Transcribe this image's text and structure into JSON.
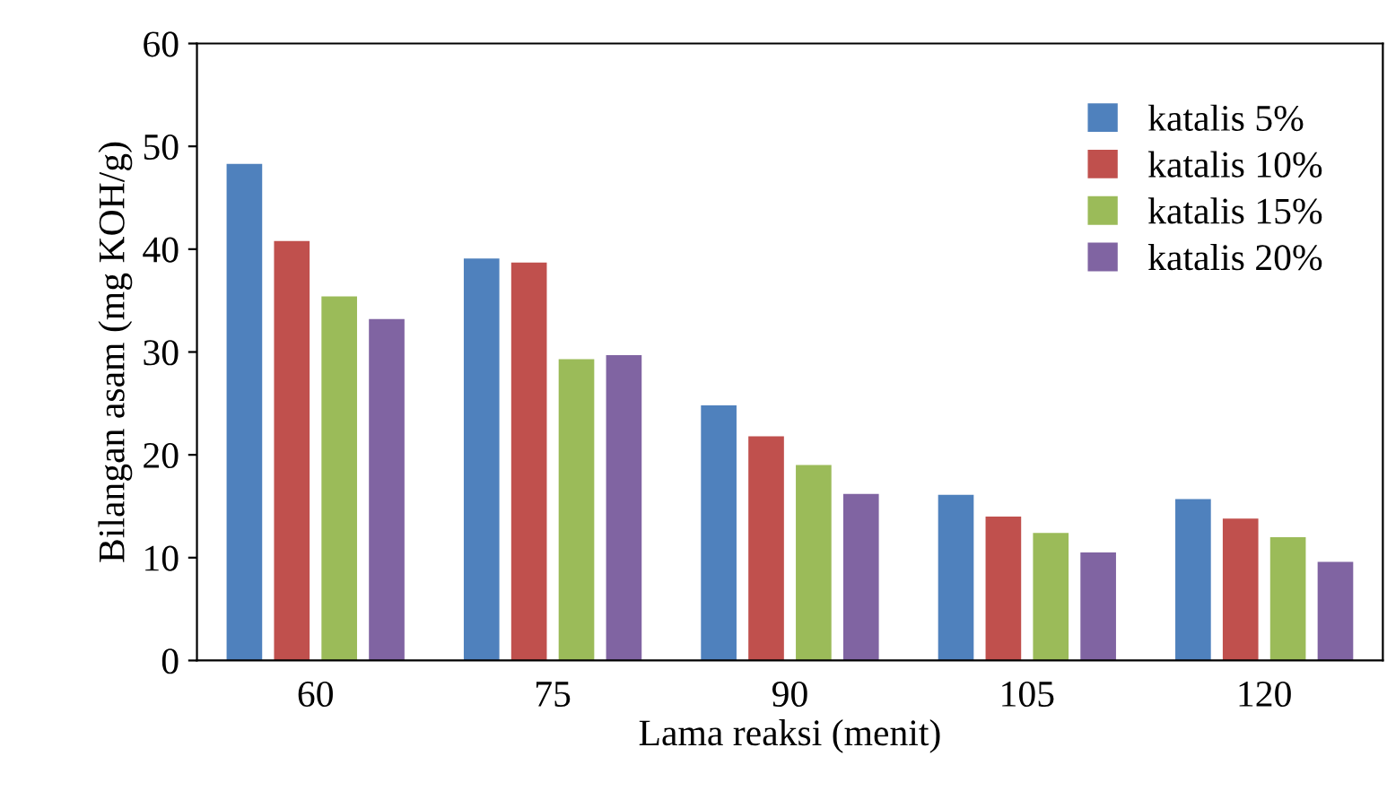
{
  "chart_data": {
    "type": "bar",
    "xlabel": "Lama reaksi (menit)",
    "ylabel": "Bilangan asam (mg KOH/g)",
    "categories": [
      "60",
      "75",
      "90",
      "105",
      "120"
    ],
    "series": [
      {
        "name": "katalis 5%",
        "color": "#4f81bd",
        "values": [
          48.3,
          39.1,
          24.8,
          16.1,
          15.7
        ]
      },
      {
        "name": "katalis 10%",
        "color": "#c0504d",
        "values": [
          40.8,
          38.7,
          21.8,
          14.0,
          13.8
        ]
      },
      {
        "name": "katalis 15%",
        "color": "#9bbb59",
        "values": [
          35.4,
          29.3,
          19.0,
          12.4,
          12.0
        ]
      },
      {
        "name": "katalis 20%",
        "color": "#8064a2",
        "values": [
          33.2,
          29.7,
          16.2,
          10.5,
          9.6
        ]
      }
    ],
    "ylim": [
      0,
      60
    ],
    "yticks": [
      0,
      10,
      20,
      30,
      40,
      50,
      60
    ],
    "grid": false,
    "legend": "top right"
  }
}
